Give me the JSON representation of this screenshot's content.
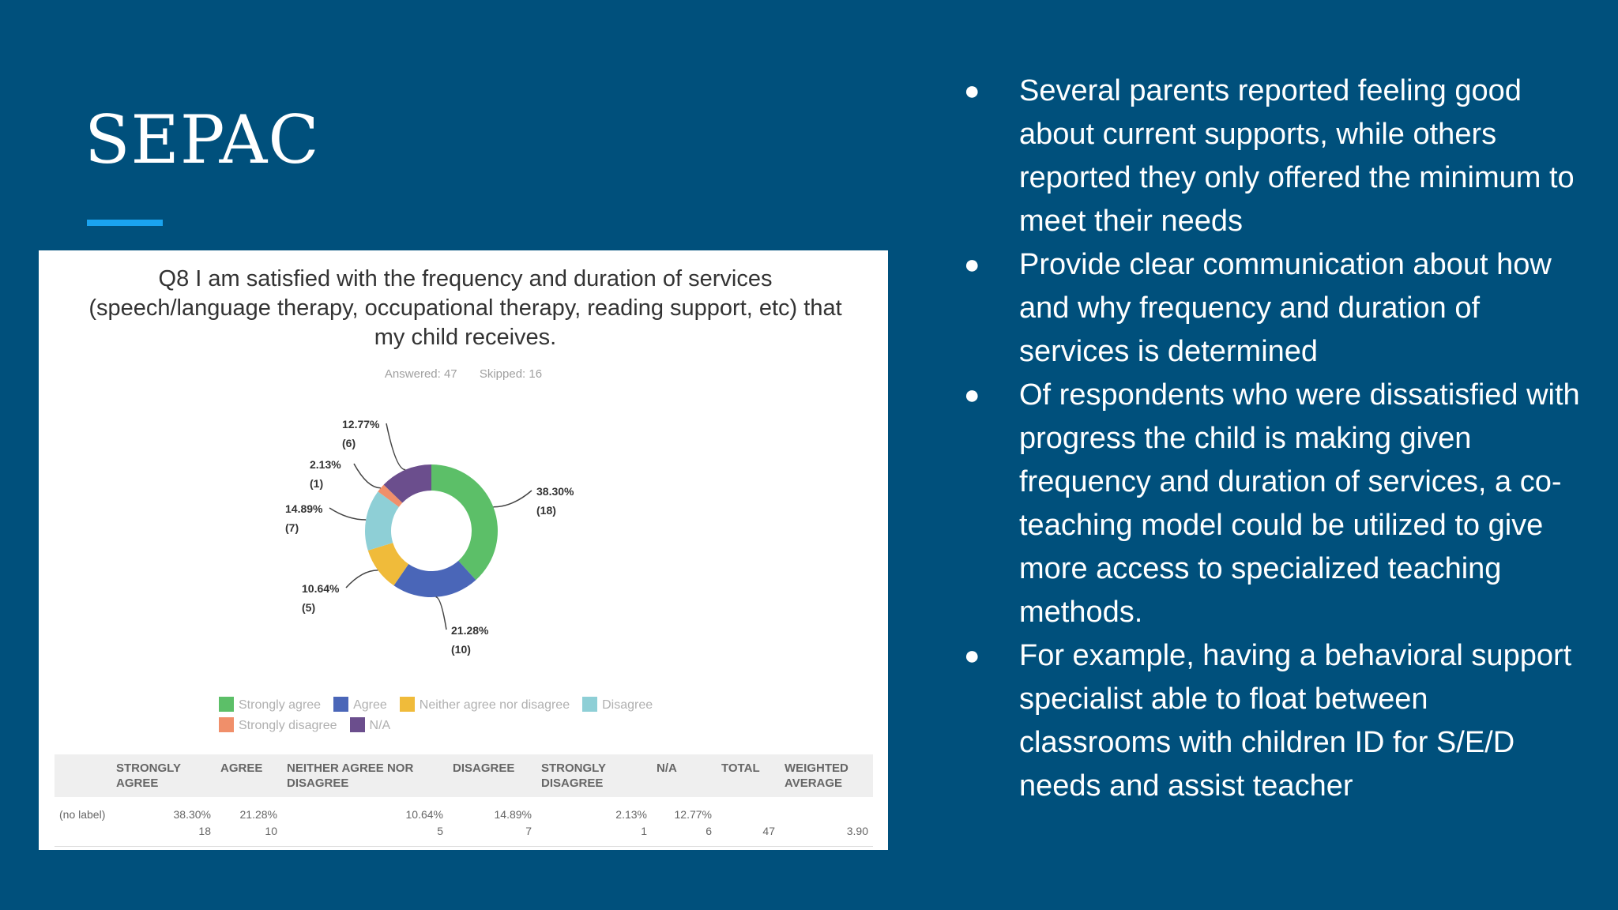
{
  "slide": {
    "title": "SEPAC",
    "accent_color": "#1aa3ef",
    "background": "#00507c"
  },
  "chart_data": {
    "type": "pie",
    "variant": "donut",
    "title": "Q8 I am satisfied with the frequency and duration of services (speech/language therapy, occupational therapy, reading support, etc) that my child receives.",
    "answered": "Answered: 47",
    "skipped": "Skipped: 16",
    "slices": [
      {
        "name": "Strongly agree",
        "percent": 38.3,
        "count": 18,
        "label": "38.30%",
        "count_label": "(18)",
        "color": "#5cbf68"
      },
      {
        "name": "Agree",
        "percent": 21.28,
        "count": 10,
        "label": "21.28%",
        "count_label": "(10)",
        "color": "#4a66b8"
      },
      {
        "name": "Neither agree nor disagree",
        "percent": 10.64,
        "count": 5,
        "label": "10.64%",
        "count_label": "(5)",
        "color": "#f0bb3a"
      },
      {
        "name": "Disagree",
        "percent": 14.89,
        "count": 7,
        "label": "14.89%",
        "count_label": "(7)",
        "color": "#8ecfd6"
      },
      {
        "name": "Strongly disagree",
        "percent": 2.13,
        "count": 1,
        "label": "2.13%",
        "count_label": "(1)",
        "color": "#f08f6a"
      },
      {
        "name": "N/A",
        "percent": 12.77,
        "count": 6,
        "label": "12.77%",
        "count_label": "(6)",
        "color": "#6b4e8d"
      }
    ],
    "legend_position": "bottom",
    "table": {
      "headers": [
        "",
        "STRONGLY AGREE",
        "AGREE",
        "NEITHER AGREE NOR DISAGREE",
        "DISAGREE",
        "STRONGLY DISAGREE",
        "N/A",
        "TOTAL",
        "WEIGHTED AVERAGE"
      ],
      "rows": [
        {
          "label": "(no label)",
          "cells": [
            {
              "pct": "38.30%",
              "cnt": "18"
            },
            {
              "pct": "21.28%",
              "cnt": "10"
            },
            {
              "pct": "10.64%",
              "cnt": "5"
            },
            {
              "pct": "14.89%",
              "cnt": "7"
            },
            {
              "pct": "2.13%",
              "cnt": "1"
            },
            {
              "pct": "12.77%",
              "cnt": "6"
            },
            {
              "pct": "",
              "cnt": "47"
            },
            {
              "pct": "",
              "cnt": "3.90"
            }
          ]
        }
      ]
    }
  },
  "bullets": [
    "Several parents reported feeling good about current supports, while others reported they only offered the minimum to meet their needs",
    "Provide clear communication about how and why frequency and duration of services is determined",
    "Of respondents who were dissatisfied with progress the child is making given frequency and duration of services, a co-teaching model could be utilized to give more access to specialized teaching methods.",
    "For example, having a behavioral support specialist able to float between classrooms with children ID for S/E/D needs and assist teacher"
  ],
  "bullet_glyph": "●"
}
